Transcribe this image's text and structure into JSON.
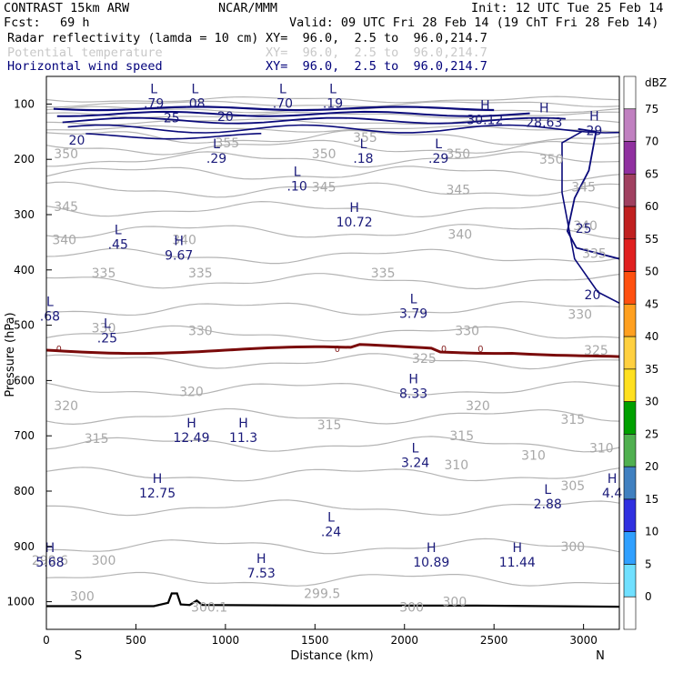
{
  "header": {
    "model": "CONTRAST 15km ARW",
    "center": "NCAR/MMM",
    "init": "Init: 12 UTC Tue 25 Feb 14",
    "fcst_label": "Fcst:",
    "fcst_value": "69 h",
    "valid": "Valid: 09 UTC Fri 28 Feb 14 (19 ChT Fri 28 Feb 14)",
    "fields": [
      {
        "name": "Radar reflectivity (lamda = 10 cm)",
        "xy": "XY=  96.0,  2.5 to  96.0,214.7",
        "color": "#000000"
      },
      {
        "name": "Potential temperature",
        "xy": "XY=  96.0,  2.5 to  96.0,214.7",
        "color": "#c8c8c8"
      },
      {
        "name": "Horizontal wind speed",
        "xy": "XY=  96.0,  2.5 to  96.0,214.7",
        "color": "#00007a"
      }
    ]
  },
  "colorbar": {
    "unit": "dBZ",
    "levels": [
      "75",
      "70",
      "65",
      "60",
      "55",
      "50",
      "45",
      "40",
      "35",
      "30",
      "25",
      "20",
      "15",
      "10",
      "5",
      "0"
    ],
    "colors": [
      "#ffffff",
      "#c080c0",
      "#9030a0",
      "#a04060",
      "#c02020",
      "#e02020",
      "#ff5010",
      "#ffa020",
      "#ffd040",
      "#ffe020",
      "#00a000",
      "#50b050",
      "#4080c0",
      "#3030e0",
      "#30a0ff",
      "#70e0ff",
      "#ffffff"
    ]
  },
  "chart_data": {
    "type": "cross-section",
    "xlabel": "Distance (km)",
    "ylabel": "Pressure (hPa)",
    "xlim": [
      0,
      3200
    ],
    "ylim": [
      1050,
      50
    ],
    "x_ticks": [
      "0",
      "500",
      "1000",
      "1500",
      "2000",
      "2500",
      "3000"
    ],
    "y_ticks": [
      "100",
      "200",
      "300",
      "400",
      "500",
      "600",
      "700",
      "800",
      "900",
      "1000"
    ],
    "x_end_labels": {
      "left": "S",
      "right": "N"
    },
    "theta_labels": [
      {
        "text": "355",
        "x": 1010,
        "p": 170
      },
      {
        "text": "355",
        "x": 1780,
        "p": 160
      },
      {
        "text": "350",
        "x": 110,
        "p": 190
      },
      {
        "text": "350",
        "x": 1550,
        "p": 190
      },
      {
        "text": "350",
        "x": 2300,
        "p": 190
      },
      {
        "text": "350",
        "x": 2820,
        "p": 200
      },
      {
        "text": "345",
        "x": 110,
        "p": 285
      },
      {
        "text": "345",
        "x": 1550,
        "p": 250
      },
      {
        "text": "345",
        "x": 2300,
        "p": 255
      },
      {
        "text": "345",
        "x": 3000,
        "p": 250
      },
      {
        "text": "340",
        "x": 100,
        "p": 345
      },
      {
        "text": "340",
        "x": 770,
        "p": 345
      },
      {
        "text": "340",
        "x": 2310,
        "p": 335
      },
      {
        "text": "340",
        "x": 3010,
        "p": 320
      },
      {
        "text": "335",
        "x": 320,
        "p": 405
      },
      {
        "text": "335",
        "x": 860,
        "p": 405
      },
      {
        "text": "335",
        "x": 1880,
        "p": 405
      },
      {
        "text": "335",
        "x": 3060,
        "p": 370
      },
      {
        "text": "330",
        "x": 320,
        "p": 505
      },
      {
        "text": "330",
        "x": 860,
        "p": 510
      },
      {
        "text": "330",
        "x": 2350,
        "p": 510
      },
      {
        "text": "330",
        "x": 2980,
        "p": 480
      },
      {
        "text": "325",
        "x": 2110,
        "p": 560
      },
      {
        "text": "325",
        "x": 3070,
        "p": 545
      },
      {
        "text": "320",
        "x": 110,
        "p": 645
      },
      {
        "text": "320",
        "x": 810,
        "p": 620
      },
      {
        "text": "320",
        "x": 2410,
        "p": 645
      },
      {
        "text": "315",
        "x": 280,
        "p": 705
      },
      {
        "text": "315",
        "x": 1580,
        "p": 680
      },
      {
        "text": "315",
        "x": 2320,
        "p": 700
      },
      {
        "text": "315",
        "x": 2940,
        "p": 670
      },
      {
        "text": "310",
        "x": 2290,
        "p": 752
      },
      {
        "text": "310",
        "x": 2720,
        "p": 735
      },
      {
        "text": "310",
        "x": 3100,
        "p": 722
      },
      {
        "text": "305",
        "x": 2940,
        "p": 790
      },
      {
        "text": "300",
        "x": 320,
        "p": 925
      },
      {
        "text": "300",
        "x": 2940,
        "p": 900
      },
      {
        "text": "300",
        "x": 200,
        "p": 990
      },
      {
        "text": "300",
        "x": 2280,
        "p": 1000
      },
      {
        "text": "300",
        "x": 2040,
        "p": 1010
      },
      {
        "text": "299.5",
        "x": 1540,
        "p": 985
      },
      {
        "text": "300.1",
        "x": 910,
        "p": 1010
      },
      {
        "text": "299.6",
        "x": 20,
        "p": 925
      }
    ],
    "wind_contours": [
      {
        "value": "20",
        "x": 170,
        "p": 165
      },
      {
        "value": "25",
        "x": 700,
        "p": 125
      },
      {
        "value": "20",
        "x": 1000,
        "p": 122
      },
      {
        "value": "25",
        "x": 3000,
        "p": 325
      },
      {
        "value": "20",
        "x": 3050,
        "p": 445
      }
    ],
    "reflectivity_contour": {
      "value": "0",
      "label_positions": [
        70,
        1625,
        2220,
        2425
      ]
    },
    "extrema": [
      {
        "type": "L",
        "value": ".79",
        "x": 600,
        "p": 85
      },
      {
        "type": "L",
        "value": ".08",
        "x": 830,
        "p": 85
      },
      {
        "type": "L",
        "value": ".70",
        "x": 1320,
        "p": 85
      },
      {
        "type": "L",
        "value": ".19",
        "x": 1600,
        "p": 85
      },
      {
        "type": "H",
        "value": "30.12",
        "x": 2450,
        "p": 115
      },
      {
        "type": "H",
        "value": "28.63",
        "x": 2780,
        "p": 120
      },
      {
        "type": "H",
        "value": "29",
        "x": 3060,
        "p": 135
      },
      {
        "type": "L",
        "value": ".29",
        "x": 950,
        "p": 185
      },
      {
        "type": "L",
        "value": ".18",
        "x": 1770,
        "p": 185
      },
      {
        "type": "L",
        "value": ".29",
        "x": 2190,
        "p": 185
      },
      {
        "type": "L",
        "value": ".10",
        "x": 1400,
        "p": 235
      },
      {
        "type": "H",
        "value": "10.72",
        "x": 1720,
        "p": 300
      },
      {
        "type": "L",
        "value": ".45",
        "x": 400,
        "p": 340
      },
      {
        "type": "H",
        "value": "9.67",
        "x": 740,
        "p": 360
      },
      {
        "type": "L",
        "value": ".68",
        "x": 20,
        "p": 470
      },
      {
        "type": "L",
        "value": "3.79",
        "x": 2050,
        "p": 465
      },
      {
        "type": "L",
        "value": ".25",
        "x": 340,
        "p": 510
      },
      {
        "type": "H",
        "value": "8.33",
        "x": 2050,
        "p": 610
      },
      {
        "type": "H",
        "value": "12.49",
        "x": 810,
        "p": 690
      },
      {
        "type": "H",
        "value": "11.3",
        "x": 1100,
        "p": 690
      },
      {
        "type": "L",
        "value": "3.24",
        "x": 2060,
        "p": 735
      },
      {
        "type": "H",
        "value": "12.75",
        "x": 620,
        "p": 790
      },
      {
        "type": "H",
        "value": "4.4",
        "x": 3160,
        "p": 790
      },
      {
        "type": "L",
        "value": "2.88",
        "x": 2800,
        "p": 810
      },
      {
        "type": "L",
        "value": ".24",
        "x": 1590,
        "p": 860
      },
      {
        "type": "H",
        "value": "5.68",
        "x": 20,
        "p": 915
      },
      {
        "type": "H",
        "value": "10.89",
        "x": 2150,
        "p": 915
      },
      {
        "type": "H",
        "value": "11.44",
        "x": 2630,
        "p": 915
      },
      {
        "type": "H",
        "value": "7.53",
        "x": 1200,
        "p": 935
      }
    ]
  }
}
